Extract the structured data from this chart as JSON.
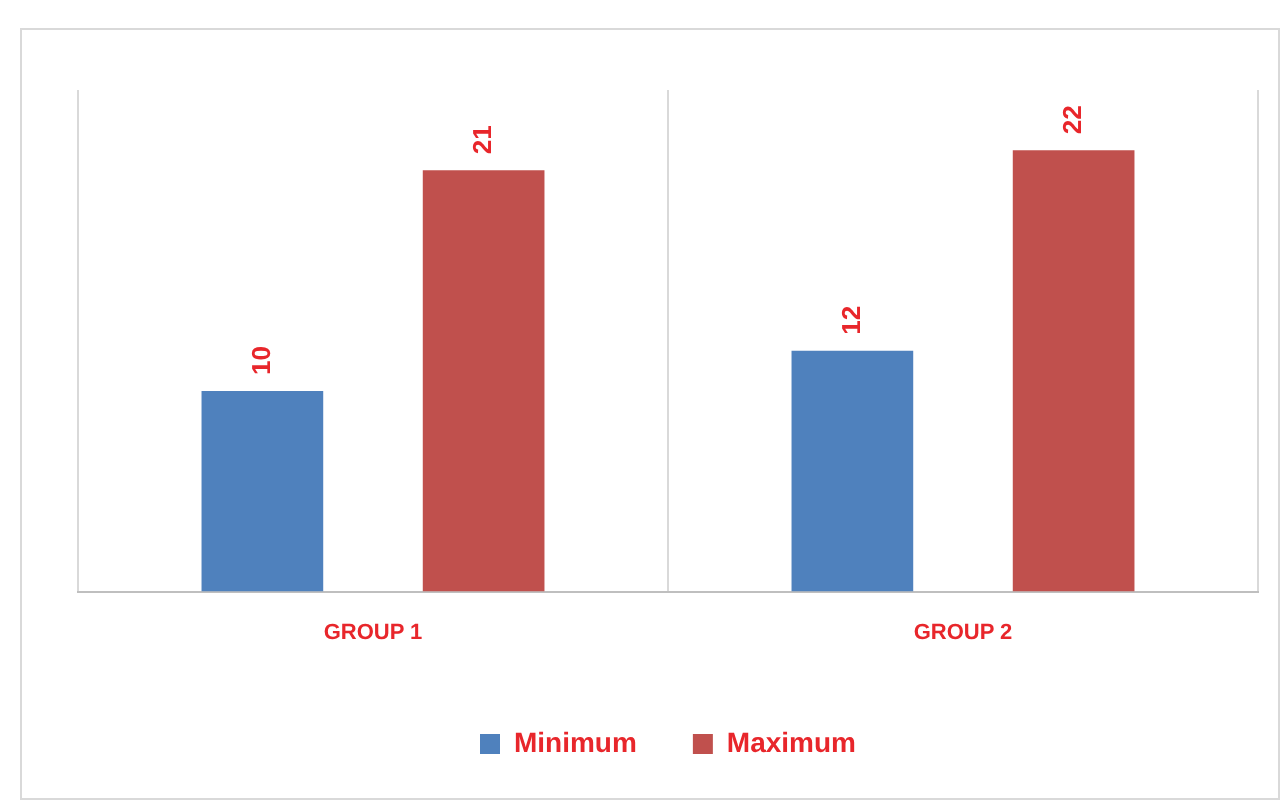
{
  "chart_data": {
    "type": "bar",
    "categories": [
      "GROUP 1",
      "GROUP 2"
    ],
    "series": [
      {
        "name": "Minimum",
        "color": "#4f81bd",
        "values": [
          10,
          12
        ]
      },
      {
        "name": "Maximum",
        "color": "#c0504d",
        "values": [
          21,
          22
        ]
      }
    ],
    "data_labels": true,
    "grid": "x",
    "legend": "bottom"
  }
}
